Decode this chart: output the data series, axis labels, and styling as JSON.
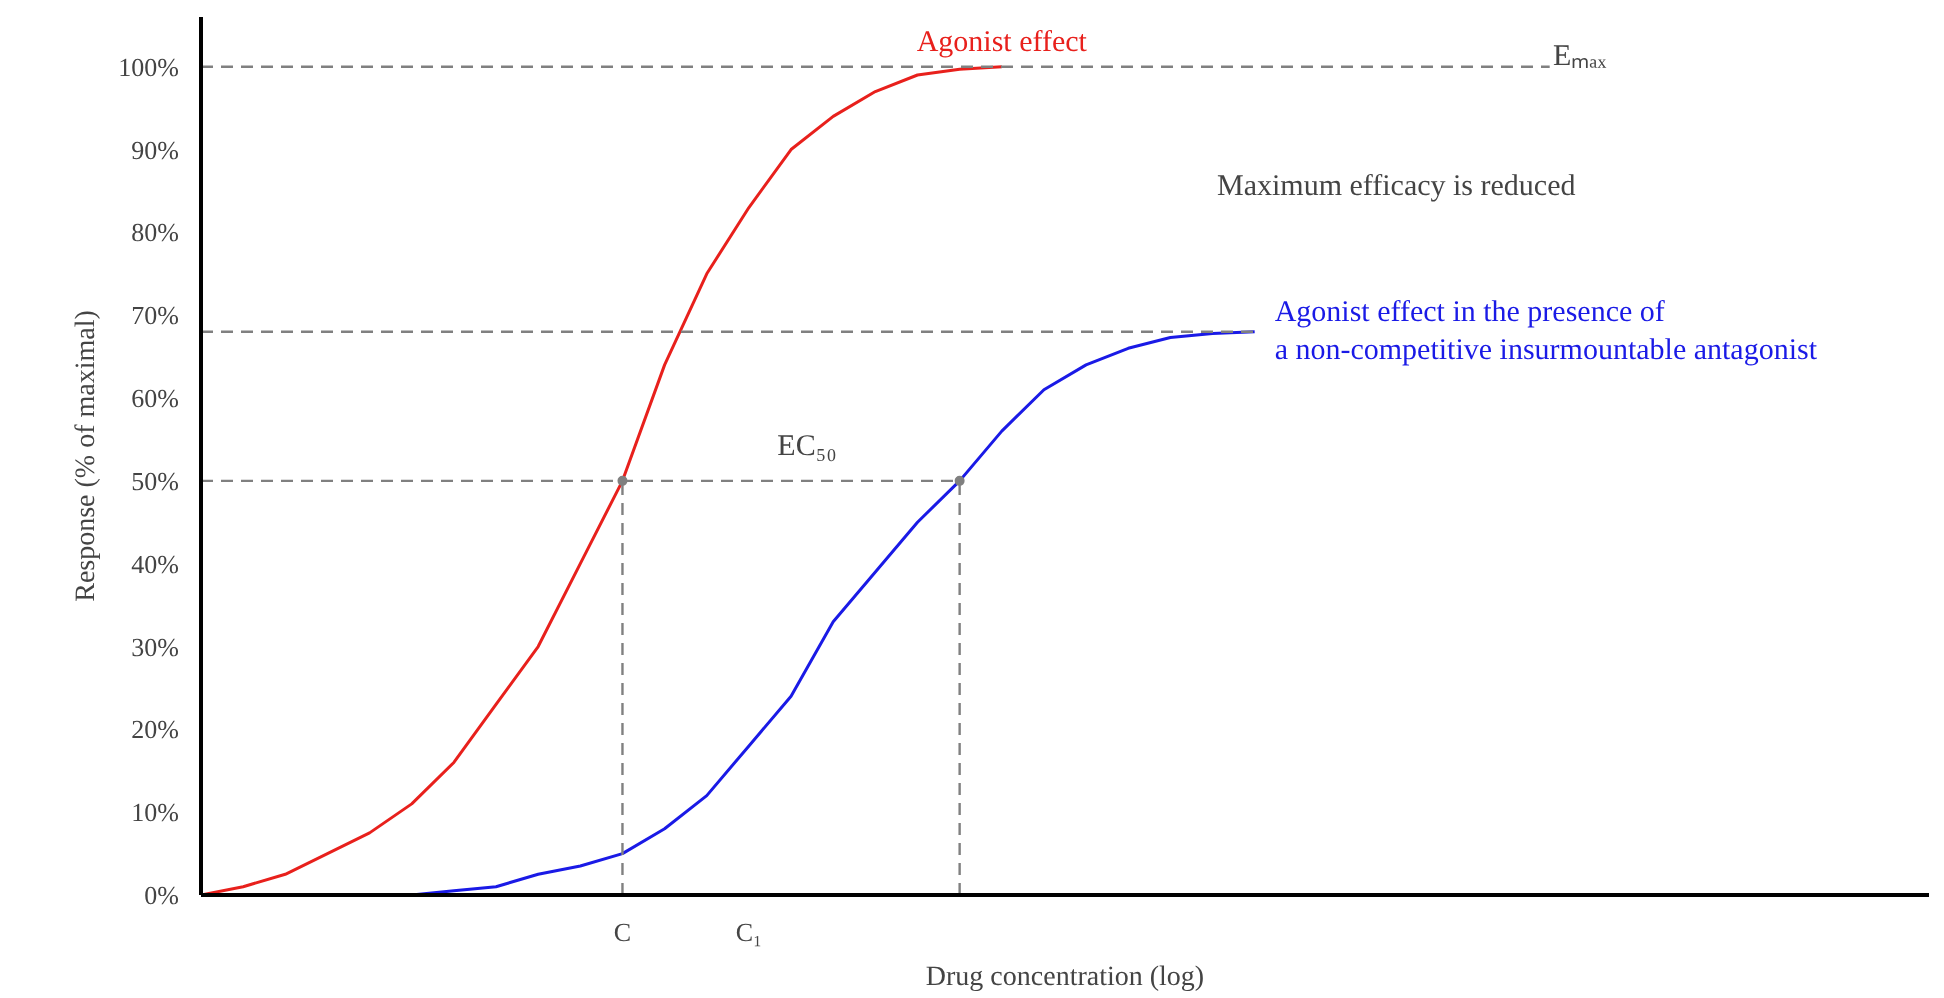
{
  "chart_data": {
    "type": "line",
    "xlabel": "Drug concentration (log)",
    "ylabel": "Response (% of maximal)",
    "categories": [
      null,
      null,
      null,
      null,
      null,
      null,
      null,
      null,
      null,
      null,
      "C",
      null,
      null,
      "C₁",
      null,
      null,
      null,
      null,
      null,
      null,
      null,
      null,
      null,
      null,
      null,
      null,
      null,
      null,
      null,
      null,
      null,
      null,
      null,
      null,
      null,
      null,
      null,
      null,
      null,
      null,
      null,
      null
    ],
    "ylim": [
      0,
      106
    ],
    "yticks": [
      {
        "value": 0,
        "label": "0%"
      },
      {
        "value": 10,
        "label": "10%"
      },
      {
        "value": 20,
        "label": "20%"
      },
      {
        "value": 30,
        "label": "30%"
      },
      {
        "value": 40,
        "label": "40%"
      },
      {
        "value": 50,
        "label": "50%"
      },
      {
        "value": 60,
        "label": "60%"
      },
      {
        "value": 70,
        "label": "70%"
      },
      {
        "value": 80,
        "label": "80%"
      },
      {
        "value": 90,
        "label": "90%"
      },
      {
        "value": 100,
        "label": "100%"
      }
    ],
    "grid": false,
    "marker": "none",
    "series": [
      {
        "name": "Agonist effect",
        "color": "#e8201c",
        "values": [
          0,
          1,
          2.5,
          5,
          7.5,
          11,
          16,
          23,
          30,
          40,
          50,
          64,
          75,
          83,
          90,
          94,
          97,
          99,
          99.7,
          100,
          null,
          null,
          null,
          null,
          null,
          null,
          null,
          null,
          null,
          null,
          null,
          null,
          null,
          null,
          null,
          null,
          null,
          null,
          null,
          null,
          null,
          null
        ]
      },
      {
        "name": "Agonist effect in the presence  of\na non-competitive insurmountable antagonist",
        "color": "#1a1ae6",
        "values": [
          null,
          null,
          null,
          null,
          null,
          0,
          0.5,
          1,
          2.5,
          3.5,
          5,
          8,
          12,
          18,
          24,
          33,
          39,
          45,
          50,
          56,
          61,
          64,
          66,
          67.3,
          67.8,
          68,
          null,
          null,
          null,
          null,
          null,
          null,
          null,
          null,
          null,
          null,
          null,
          null,
          null,
          null,
          null,
          null
        ]
      },
      {
        "color": "#808080",
        "line_style": "dashed",
        "values": [
          100,
          100,
          100,
          100,
          100,
          100,
          100,
          100,
          100,
          100,
          100,
          100,
          100,
          100,
          100,
          100,
          100,
          100,
          100,
          100,
          100,
          100,
          100,
          100,
          100,
          100,
          100,
          100,
          100,
          100,
          100,
          100,
          100,
          null,
          null,
          null,
          null,
          null,
          null,
          null,
          null,
          null
        ]
      },
      {
        "color": "#808080",
        "line_style": "dashed",
        "values": [
          68,
          68,
          68,
          68,
          68,
          68,
          68,
          68,
          68,
          68,
          68,
          68,
          68,
          68,
          68,
          68,
          68,
          68,
          68,
          68,
          68,
          68,
          68,
          68,
          68,
          68,
          null,
          null,
          null,
          null,
          null,
          null,
          null,
          null,
          null,
          null,
          null,
          null,
          null,
          null,
          null,
          null
        ]
      },
      {
        "color": "#808080",
        "line_style": "dashed",
        "values": [
          50,
          50,
          50,
          50,
          50,
          50,
          50,
          50,
          50,
          50,
          50,
          50,
          50,
          50,
          50,
          50,
          50,
          50,
          50,
          null,
          null,
          null,
          null,
          null,
          null,
          null,
          null,
          null,
          null,
          null,
          null,
          null,
          null,
          null,
          null,
          null,
          null,
          null,
          null,
          null,
          null,
          null
        ]
      },
      {
        "type": "lollipop",
        "color": "#808080",
        "line_style": "dashed",
        "marker": "circle",
        "values": [
          null,
          null,
          null,
          null,
          null,
          null,
          null,
          null,
          null,
          null,
          50,
          null,
          null,
          null,
          null,
          null,
          null,
          null,
          50,
          null,
          null,
          null,
          null,
          null,
          null,
          null,
          null,
          null,
          null,
          null,
          null,
          null,
          null,
          null,
          null,
          null,
          null,
          null,
          null,
          null,
          null,
          null
        ]
      }
    ],
    "annotations": [
      "Eₘₐₓ",
      "Maximum efficacy is reduced",
      "EC₅₀"
    ]
  }
}
